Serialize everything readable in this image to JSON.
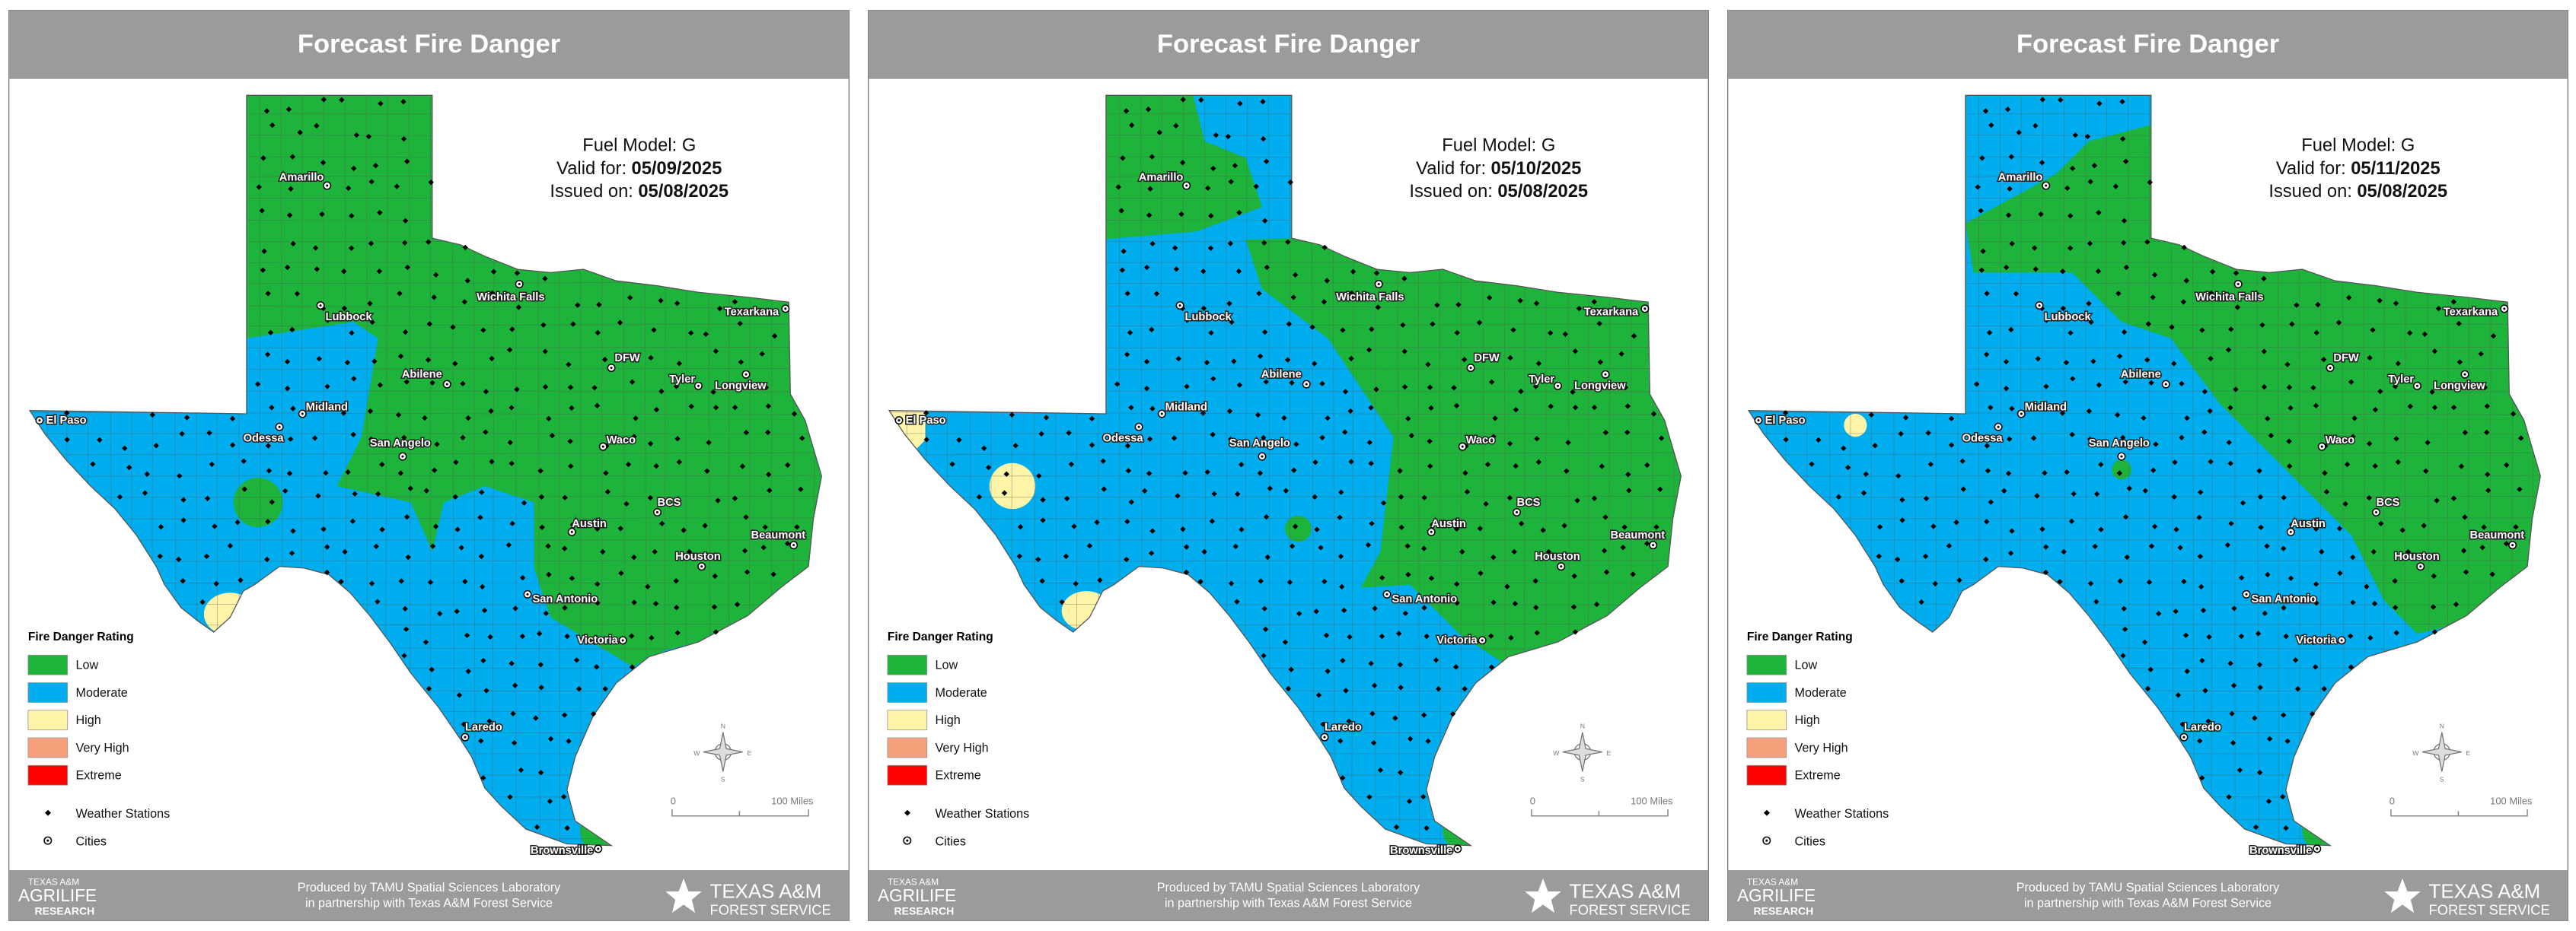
{
  "panels": [
    {
      "title": "Forecast Fire Danger",
      "fuel_model": "Fuel Model: G",
      "valid_label": "Valid for:",
      "valid_date": "05/09/2025",
      "issued_label": "Issued on:",
      "issued_date": "05/08/2025"
    },
    {
      "title": "Forecast Fire Danger",
      "fuel_model": "Fuel Model: G",
      "valid_label": "Valid for:",
      "valid_date": "05/10/2025",
      "issued_label": "Issued on:",
      "issued_date": "05/08/2025"
    },
    {
      "title": "Forecast Fire Danger",
      "fuel_model": "Fuel Model: G",
      "valid_label": "Valid for:",
      "valid_date": "05/11/2025",
      "issued_label": "Issued on:",
      "issued_date": "05/08/2025"
    }
  ],
  "cities": [
    "Amarillo",
    "Lubbock",
    "Wichita Falls",
    "Texarkana",
    "DFW",
    "Tyler",
    "Longview",
    "Abilene",
    "Midland",
    "Odessa",
    "El Paso",
    "San Angelo",
    "Waco",
    "BCS",
    "Austin",
    "Beaumont",
    "Houston",
    "San Antonio",
    "Victoria",
    "Laredo",
    "Brownsville"
  ],
  "legend": {
    "title": "Fire Danger Rating",
    "ratings": [
      {
        "label": "Low",
        "color": "#1eb33b"
      },
      {
        "label": "Moderate",
        "color": "#00adef"
      },
      {
        "label": "High",
        "color": "#fff5a8"
      },
      {
        "label": "Very High",
        "color": "#f7a07c"
      },
      {
        "label": "Extreme",
        "color": "#fe0000"
      }
    ],
    "stations": "Weather Stations",
    "cities": "Cities"
  },
  "scale": {
    "start": "0",
    "end": "100 Miles"
  },
  "compass": {
    "n": "N",
    "s": "S",
    "e": "E",
    "w": "W"
  },
  "footer": {
    "line1": "Produced by TAMU Spatial Sciences Laboratory",
    "line2": "in partnership with Texas A&M Forest Service",
    "left_logo": [
      "TEXAS A&M",
      "AGRILIFE",
      "RESEARCH"
    ],
    "right_logo": [
      "TEXAS A&M",
      "FOREST SERVICE"
    ]
  }
}
